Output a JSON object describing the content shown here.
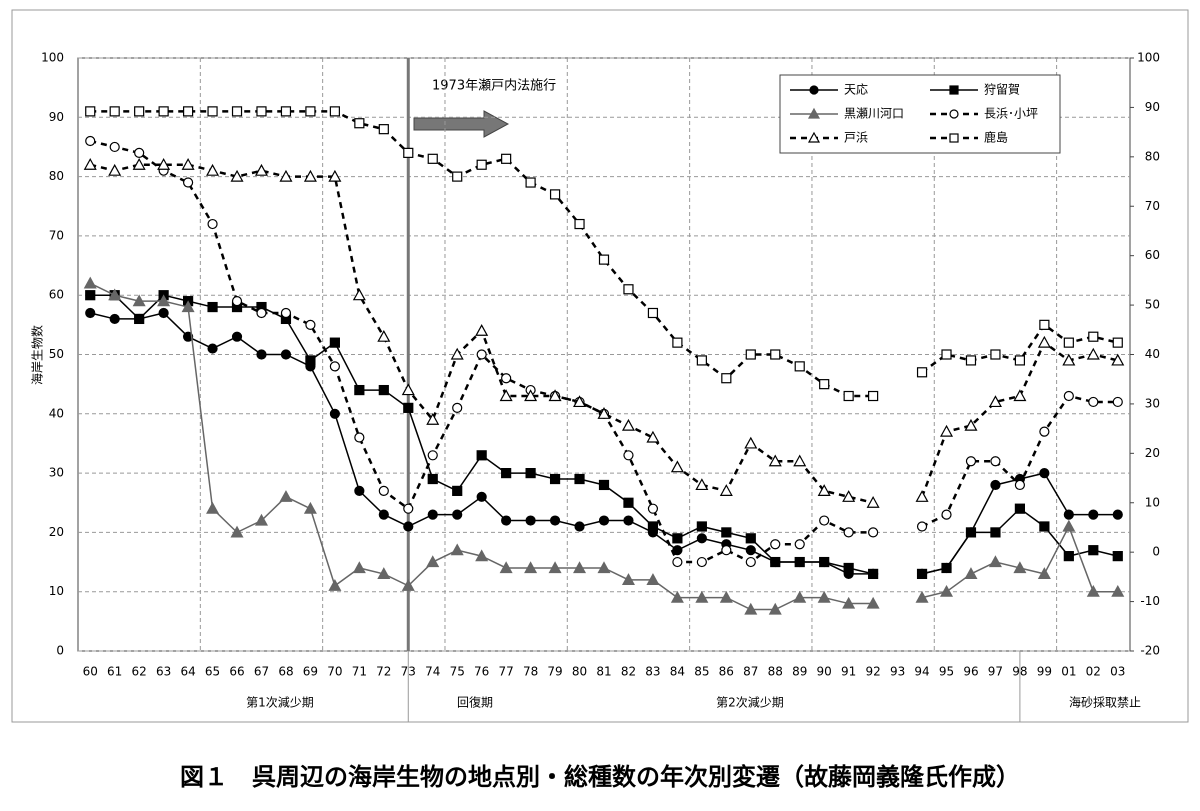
{
  "chart_data": {
    "type": "line",
    "y_label": "海岸生物数",
    "annotation": "1973年瀬戸内法施行",
    "periods": [
      "第1次減少期",
      "回復期",
      "第2次減少期",
      "海砂採取禁止"
    ],
    "caption": "図１　呉周辺の海岸生物の地点別・総種数の年次別変遷（故藤岡義隆氏作成）",
    "categories": [
      "60",
      "61",
      "62",
      "63",
      "64",
      "65",
      "66",
      "67",
      "68",
      "69",
      "70",
      "71",
      "72",
      "73",
      "74",
      "75",
      "76",
      "77",
      "78",
      "79",
      "80",
      "81",
      "82",
      "83",
      "84",
      "85",
      "86",
      "87",
      "88",
      "89",
      "90",
      "91",
      "92",
      "93",
      "94",
      "95",
      "96",
      "97",
      "98",
      "99",
      "01",
      "02",
      "03"
    ],
    "ylim": [
      0,
      100
    ],
    "yticks": [
      0,
      10,
      20,
      30,
      40,
      50,
      60,
      70,
      80,
      90,
      100
    ],
    "y2lim": [
      -20,
      100
    ],
    "y2ticks": [
      -20,
      -10,
      0,
      10,
      20,
      30,
      40,
      50,
      60,
      70,
      80,
      90,
      100
    ],
    "grid": true,
    "series": [
      {
        "name": "天応",
        "color": "#000000",
        "marker": "circle",
        "filled": true,
        "dashed": false,
        "values": [
          57,
          56,
          56,
          57,
          53,
          51,
          53,
          50,
          50,
          48,
          40,
          27,
          23,
          21,
          23,
          23,
          26,
          22,
          22,
          22,
          21,
          22,
          22,
          20,
          17,
          19,
          18,
          17,
          15,
          15,
          15,
          13,
          13,
          null,
          13,
          14,
          20,
          28,
          29,
          30,
          23,
          23,
          23
        ]
      },
      {
        "name": "狩留賀",
        "color": "#000000",
        "marker": "square",
        "filled": true,
        "dashed": false,
        "values": [
          60,
          60,
          56,
          60,
          59,
          58,
          58,
          58,
          56,
          49,
          52,
          44,
          44,
          41,
          29,
          27,
          33,
          30,
          30,
          29,
          29,
          28,
          25,
          21,
          19,
          21,
          20,
          19,
          15,
          15,
          15,
          14,
          13,
          null,
          13,
          14,
          20,
          20,
          24,
          21,
          16,
          17,
          16
        ]
      },
      {
        "name": "黒瀬川河口",
        "color": "#666666",
        "marker": "triangle",
        "filled": true,
        "dashed": false,
        "values": [
          62,
          60,
          59,
          59,
          58,
          24,
          20,
          22,
          26,
          24,
          11,
          14,
          13,
          11,
          15,
          17,
          16,
          14,
          14,
          14,
          14,
          14,
          12,
          12,
          9,
          9,
          9,
          7,
          7,
          9,
          9,
          8,
          8,
          null,
          9,
          10,
          13,
          15,
          14,
          13,
          21,
          10,
          10
        ]
      },
      {
        "name": "長浜･小坪",
        "color": "#000000",
        "marker": "circle",
        "filled": false,
        "dashed": true,
        "values": [
          86,
          85,
          84,
          81,
          79,
          72,
          59,
          57,
          57,
          55,
          48,
          36,
          27,
          24,
          33,
          41,
          50,
          46,
          44,
          43,
          42,
          40,
          33,
          24,
          15,
          15,
          17,
          15,
          18,
          18,
          22,
          20,
          20,
          null,
          21,
          23,
          32,
          32,
          28,
          37,
          43,
          42,
          42
        ]
      },
      {
        "name": "戸浜",
        "color": "#000000",
        "marker": "triangle",
        "filled": false,
        "dashed": true,
        "values": [
          82,
          81,
          82,
          82,
          82,
          81,
          80,
          81,
          80,
          80,
          80,
          60,
          53,
          44,
          39,
          50,
          54,
          43,
          43,
          43,
          42,
          40,
          38,
          36,
          31,
          28,
          27,
          35,
          32,
          32,
          27,
          26,
          25,
          null,
          26,
          37,
          38,
          42,
          43,
          52,
          49,
          50,
          49
        ]
      },
      {
        "name": "鹿島",
        "color": "#000000",
        "marker": "square",
        "filled": false,
        "dashed": true,
        "values": [
          91,
          91,
          91,
          91,
          91,
          91,
          91,
          91,
          91,
          91,
          91,
          89,
          88,
          84,
          83,
          80,
          82,
          83,
          79,
          77,
          72,
          66,
          61,
          57,
          52,
          49,
          46,
          50,
          50,
          48,
          45,
          43,
          43,
          null,
          47,
          50,
          49,
          50,
          49,
          55,
          52,
          53,
          52
        ]
      }
    ]
  }
}
